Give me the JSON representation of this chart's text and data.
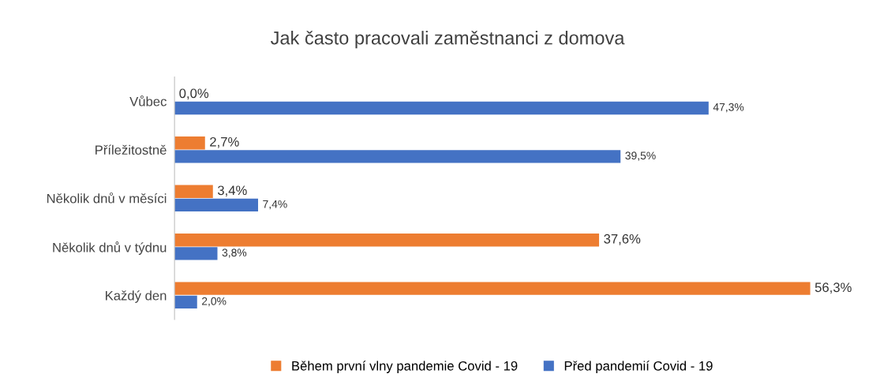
{
  "chart_data": {
    "type": "bar",
    "orientation": "horizontal",
    "title": "Jak často pracovali zaměstnanci z domova",
    "categories": [
      "Vůbec",
      "Příležitostně",
      "Několik dnů v měsíci",
      "Několik dnů v týdnu",
      "Každý den"
    ],
    "series": [
      {
        "name": "Během první vlny pandemie Covid - 19",
        "color": "#ed7d31",
        "values": [
          0.0,
          2.7,
          3.4,
          37.6,
          56.3
        ],
        "value_labels": [
          "0,0%",
          "2,7%",
          "3,4%",
          "37,6%",
          "56,3%"
        ]
      },
      {
        "name": "Před pandemií Covid - 19",
        "color": "#4472c4",
        "values": [
          47.3,
          39.5,
          7.4,
          3.8,
          2.0
        ],
        "value_labels": [
          "47,3%",
          "39,5%",
          "7,4%",
          "3,8%",
          "2,0%"
        ]
      }
    ],
    "tick_labels": "y",
    "grid": false,
    "legend": "bottom"
  }
}
